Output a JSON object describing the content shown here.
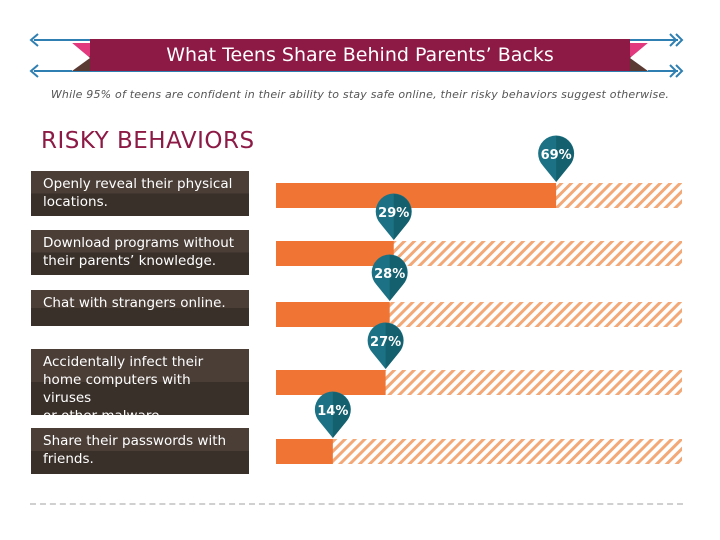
{
  "header": {
    "title": "What Teens Share Behind Parents’ Backs",
    "subtitle": "While 95% of teens are confident in their ability to stay safe online, their risky behaviors suggest otherwise."
  },
  "colors": {
    "ribbon": "#8c1a45",
    "ribbon_tail": "#e2397e",
    "ribbon_dark": "#5a3a33",
    "arrow": "#2f7fb2",
    "label_bg": "#3f342e",
    "bar": "#f07433",
    "hatch": "#f3a878",
    "pin": "#1c7284"
  },
  "chart_data": {
    "type": "bar",
    "orientation": "horizontal",
    "title": "RISKY BEHAVIORS",
    "categories": [
      "Openly reveal their physical locations.",
      "Download programs without their parents’ knowledge.",
      "Chat with strangers online.",
      "Accidentally infect their home computers with viruses or other malware.",
      "Share their passwords with friends."
    ],
    "values": [
      69,
      29,
      28,
      27,
      14
    ],
    "value_labels": [
      "69%",
      "29%",
      "28%",
      "27%",
      "14%"
    ],
    "unit": "%",
    "xlim": [
      0,
      100
    ]
  }
}
